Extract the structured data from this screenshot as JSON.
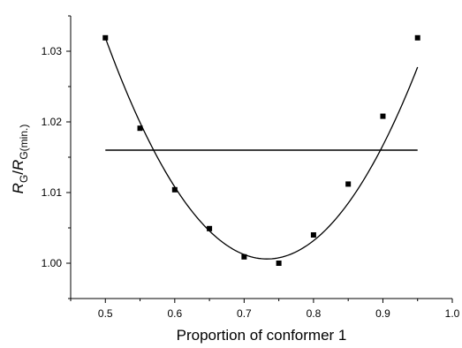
{
  "chart_data": {
    "type": "scatter",
    "title": "",
    "xlabel": "Proportion of conformer 1",
    "ylabel": {
      "r1": "R",
      "sub1": "G",
      "slash": "/",
      "r2": "R",
      "sub2": "G(min.)"
    },
    "xlim": [
      0.45,
      1.0
    ],
    "ylim": [
      0.995,
      1.035
    ],
    "x_ticks": [
      "0.5",
      "0.6",
      "0.7",
      "0.8",
      "0.9",
      "1.0"
    ],
    "y_ticks": [
      "1.00",
      "1.01",
      "1.02",
      "1.03"
    ],
    "series": [
      {
        "marker": "square",
        "color": "#000000",
        "x": [
          0.5,
          0.55,
          0.6,
          0.65,
          0.7,
          0.75,
          0.8,
          0.85,
          0.9,
          0.95
        ],
        "y": [
          1.0319,
          1.0191,
          1.0104,
          1.0049,
          1.0009,
          1.0,
          1.004,
          1.0112,
          1.0208,
          1.0319
        ]
      }
    ],
    "fit_curve": {
      "type": "parabola",
      "vertex_x": 0.733,
      "vertex_y": 1.0006,
      "through_x": 0.5,
      "through_y": 1.0319,
      "x_range": [
        0.5,
        0.95
      ],
      "color": "#000000"
    },
    "reference_line": {
      "y": 1.016,
      "x_range": [
        0.5,
        0.95
      ],
      "color": "#000000"
    },
    "grid": false,
    "legend": "none"
  }
}
